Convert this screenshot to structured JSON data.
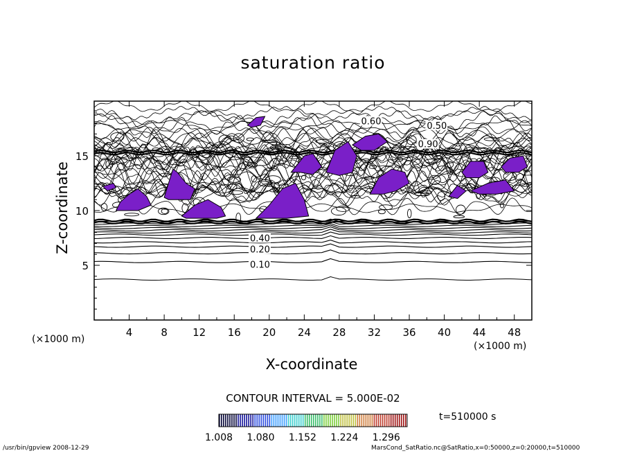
{
  "chart_data": {
    "type": "contour",
    "title": "saturation ratio",
    "xlabel": "X-coordinate",
    "ylabel": "Z-coordinate",
    "x_unit": "(×1000 m)",
    "xlim": [
      0,
      50
    ],
    "ylim": [
      0,
      20
    ],
    "x_ticks": [
      4,
      8,
      12,
      16,
      20,
      24,
      28,
      32,
      36,
      40,
      44,
      48
    ],
    "y_ticks": [
      5,
      10,
      15
    ],
    "contour_interval_label": "CONTOUR INTERVAL = 5.000E-02",
    "contour_labels": [
      {
        "text": "0.10",
        "x": 17.8,
        "z": 5.1
      },
      {
        "text": "0.20",
        "x": 17.8,
        "z": 6.5
      },
      {
        "text": "0.40",
        "x": 17.8,
        "z": 7.5
      },
      {
        "text": "0.60",
        "x": 30.5,
        "z": 18.2
      },
      {
        "text": "0.50",
        "x": 38.0,
        "z": 17.8
      },
      {
        "text": "0.90",
        "x": 37.0,
        "z": 16.1
      }
    ],
    "stratification_levels_z": [
      3.7,
      5.3,
      6.1,
      6.7,
      7.1,
      7.5,
      7.8,
      8.0,
      8.2,
      8.4,
      8.6,
      8.8,
      9.0
    ],
    "supersaturated_regions": [
      {
        "x": [
          2.5,
          3.0,
          4.0,
          5.0,
          6.0,
          6.5,
          5.0,
          3.5
        ],
        "z": [
          10.0,
          10.8,
          11.5,
          12.0,
          11.3,
          10.5,
          10.0,
          10.0
        ]
      },
      {
        "x": [
          1.5,
          2.5,
          2.2,
          1.0
        ],
        "z": [
          11.8,
          12.1,
          12.5,
          12.2
        ]
      },
      {
        "x": [
          8.0,
          8.5,
          9.0,
          9.5,
          10.5,
          11.5,
          11.0,
          9.5,
          8.5
        ],
        "z": [
          11.2,
          12.5,
          13.8,
          13.5,
          12.5,
          12.0,
          11.0,
          11.0,
          11.0
        ]
      },
      {
        "x": [
          10.0,
          11.5,
          13.0,
          14.5,
          15.0,
          14.0,
          12.0,
          10.5
        ],
        "z": [
          9.5,
          10.5,
          11.0,
          10.3,
          9.5,
          9.3,
          9.3,
          9.3
        ]
      },
      {
        "x": [
          18.5,
          20.0,
          21.5,
          23.0,
          24.0,
          24.5,
          22.0,
          19.5
        ],
        "z": [
          9.3,
          10.5,
          12.0,
          12.5,
          11.0,
          9.5,
          9.3,
          9.3
        ]
      },
      {
        "x": [
          22.5,
          24.0,
          25.0,
          26.0,
          25.0,
          23.5
        ],
        "z": [
          13.5,
          15.0,
          15.2,
          14.0,
          13.3,
          13.5
        ]
      },
      {
        "x": [
          26.5,
          27.5,
          29.0,
          30.0,
          29.5,
          28.0
        ],
        "z": [
          13.5,
          15.5,
          16.3,
          15.0,
          13.5,
          13.2
        ]
      },
      {
        "x": [
          31.5,
          32.5,
          34.0,
          35.5,
          36.0,
          34.5,
          33.0
        ],
        "z": [
          11.5,
          13.0,
          13.8,
          13.5,
          12.5,
          11.8,
          11.5
        ]
      },
      {
        "x": [
          29.5,
          31.0,
          32.5,
          33.5,
          32.0,
          30.5
        ],
        "z": [
          16.0,
          16.8,
          17.0,
          16.3,
          15.5,
          15.5
        ]
      },
      {
        "x": [
          17.5,
          18.5,
          19.5,
          19.0,
          18.0
        ],
        "z": [
          17.8,
          18.5,
          18.6,
          17.8,
          17.6
        ]
      },
      {
        "x": [
          42.0,
          43.0,
          44.5,
          45.0,
          44.0,
          42.5
        ],
        "z": [
          13.5,
          14.5,
          14.5,
          13.5,
          13.0,
          13.0
        ]
      },
      {
        "x": [
          46.5,
          47.5,
          49.0,
          49.5,
          48.5,
          47.0
        ],
        "z": [
          14.0,
          14.8,
          15.0,
          14.0,
          13.5,
          13.5
        ]
      },
      {
        "x": [
          43.0,
          45.0,
          47.0,
          48.0,
          46.0,
          44.0
        ],
        "z": [
          11.8,
          12.5,
          12.8,
          11.8,
          11.5,
          11.5
        ]
      },
      {
        "x": [
          40.5,
          41.5,
          42.5,
          41.5
        ],
        "z": [
          11.3,
          12.3,
          11.8,
          11.1
        ]
      }
    ],
    "colorbar": {
      "tick_labels": [
        "1.008",
        "1.080",
        "1.152",
        "1.224",
        "1.296"
      ],
      "range": [
        1.008,
        1.332
      ],
      "colors": [
        "#0a0a3c",
        "#1a1a9e",
        "#3050e0",
        "#40a0ff",
        "#40d0d0",
        "#40c070",
        "#80d040",
        "#c0c040",
        "#d08040",
        "#c04030",
        "#a01818"
      ]
    },
    "time_label": "t=510000 s"
  },
  "footer": {
    "left": "/usr/bin/gpview   2008-12-29",
    "right": "MarsCond_SatRatio.nc@SatRatio,x=0:50000,z=0:20000,t=510000"
  }
}
